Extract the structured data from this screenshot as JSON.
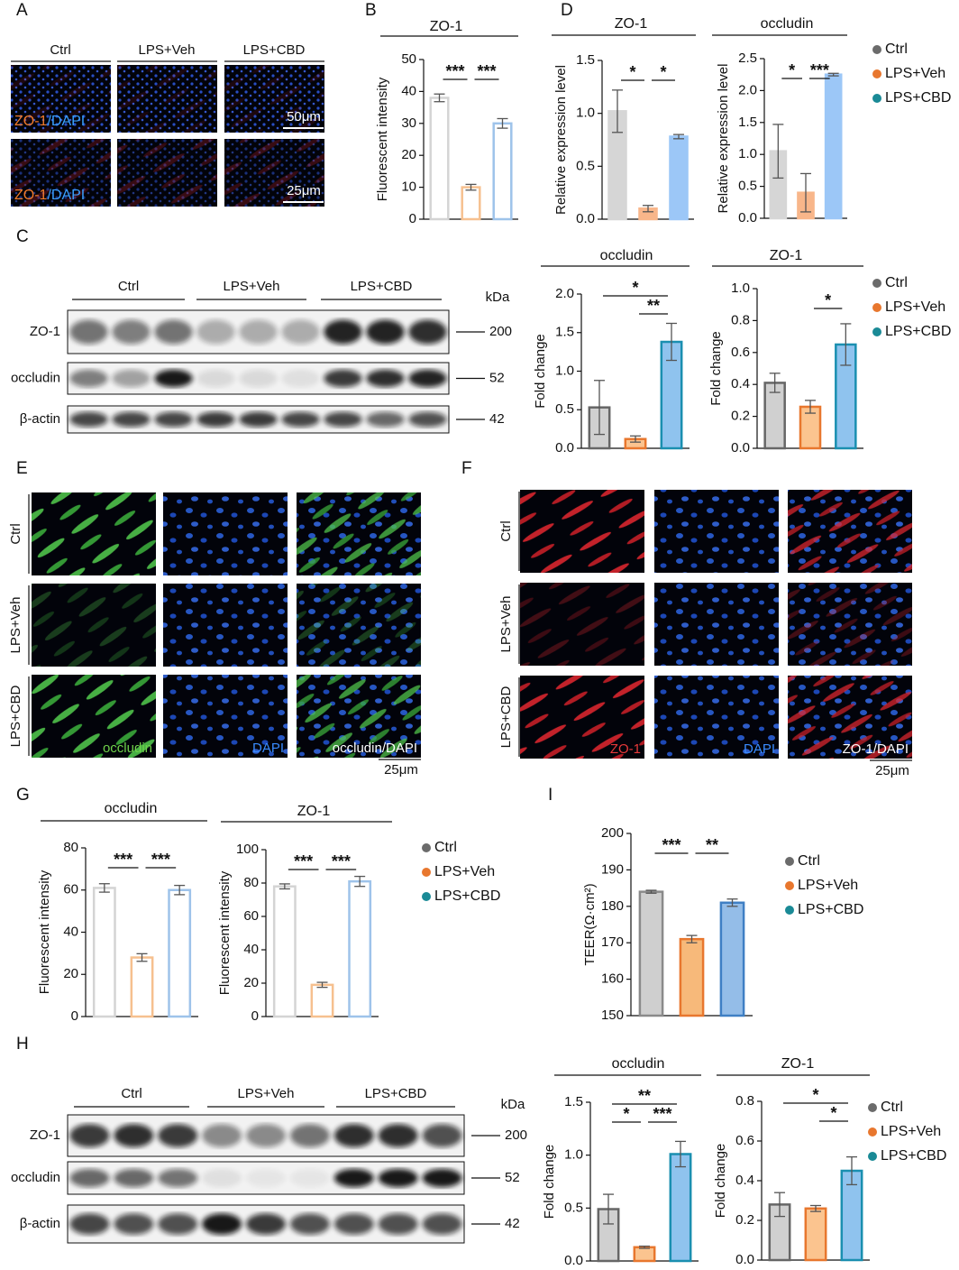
{
  "panel_labels": [
    "A",
    "B",
    "C",
    "D",
    "E",
    "F",
    "G",
    "H",
    "I"
  ],
  "panel_a": {
    "conditions": [
      "Ctrl",
      "LPS+Veh",
      "LPS+CBD"
    ],
    "rows": [
      {
        "marker": "ZO-1",
        "counter": "/DAPI",
        "scale": "50μm"
      },
      {
        "marker": "ZO-1",
        "counter": "/DAPI",
        "scale": "25μm"
      }
    ]
  },
  "panel_c_blot": {
    "conditions": [
      "Ctrl",
      "LPS+Veh",
      "LPS+CBD"
    ],
    "unit": "kDa",
    "bands": [
      {
        "name": "ZO-1",
        "kda": 200
      },
      {
        "name": "occludin",
        "kda": 52
      },
      {
        "name": "β-actin",
        "kda": 42
      }
    ]
  },
  "panel_e": {
    "rows": [
      "Ctrl",
      "LPS+Veh",
      "LPS+CBD"
    ],
    "channels": [
      "occludin",
      "DAPI",
      "occludin/DAPI"
    ],
    "scale": "25μm"
  },
  "panel_f": {
    "rows": [
      "Ctrl",
      "LPS+Veh",
      "LPS+CBD"
    ],
    "channels": [
      "ZO-1",
      "DAPI",
      "ZO-1/DAPI"
    ],
    "scale": "25μm"
  },
  "panel_h_blot": {
    "conditions": [
      "Ctrl",
      "LPS+Veh",
      "LPS+CBD"
    ],
    "unit": "kDa",
    "bands": [
      {
        "name": "ZO-1",
        "kda": 200
      },
      {
        "name": "occludin",
        "kda": 52
      },
      {
        "name": "β-actin",
        "kda": 42
      }
    ]
  },
  "chart_data": [
    {
      "type": "bar",
      "title": "ZO-1",
      "ylabel": "Fluorescent intensity",
      "ylim": [
        0,
        50
      ],
      "yticks": [
        0,
        10,
        20,
        30,
        40,
        50
      ],
      "values": [
        38,
        10,
        30
      ],
      "errors": [
        1.2,
        0.9,
        1.5
      ],
      "colors": [
        "#ffffff",
        "#ffffff",
        "#ffffff"
      ],
      "edge_colors": [
        "#d4d4d4",
        "#f6c08f",
        "#9ec3ea"
      ],
      "significance": [
        {
          "label": "***",
          "groups": [
            0,
            1
          ]
        },
        {
          "label": "***",
          "groups": [
            1,
            2
          ]
        }
      ]
    },
    {
      "type": "bar",
      "title": "ZO-1",
      "ylabel": "Relative expression level",
      "ylim": [
        0,
        1.5
      ],
      "yticks": [
        {
          "value": 0,
          "label": "0.0"
        },
        {
          "value": 0.5,
          "label": "0.5"
        },
        {
          "value": 1,
          "label": "1.0"
        },
        {
          "value": 1.5,
          "label": "1.5"
        }
      ],
      "values": [
        1.02,
        0.1,
        0.78
      ],
      "errors": [
        0.2,
        0.03,
        0.02
      ],
      "colors": [
        "#d6d6d6",
        "#f8b68a",
        "#9cc7f7"
      ],
      "edge_colors": [
        "#d6d6d6",
        "#f8b68a",
        "#9cc7f7"
      ],
      "significance": [
        {
          "label": "*",
          "groups": [
            0,
            1
          ]
        },
        {
          "label": "*",
          "groups": [
            1,
            2
          ]
        }
      ]
    },
    {
      "type": "bar",
      "title": "occludin",
      "ylabel": "Relative expression level",
      "ylim": [
        0,
        2.5
      ],
      "yticks": [
        {
          "value": 0,
          "label": "0.0"
        },
        {
          "value": 0.5,
          "label": "0.5"
        },
        {
          "value": 1,
          "label": "1.0"
        },
        {
          "value": 1.5,
          "label": "1.5"
        },
        {
          "value": 2,
          "label": "2.0"
        },
        {
          "value": 2.5,
          "label": "2.5"
        }
      ],
      "values": [
        1.05,
        0.4,
        2.25
      ],
      "errors": [
        0.42,
        0.3,
        0.02
      ],
      "colors": [
        "#d6d6d6",
        "#f8b68a",
        "#9cc7f7"
      ],
      "edge_colors": [
        "#d6d6d6",
        "#f8b68a",
        "#9cc7f7"
      ],
      "significance": [
        {
          "label": "*",
          "groups": [
            0,
            1
          ]
        },
        {
          "label": "***",
          "groups": [
            1,
            2
          ]
        }
      ],
      "categories": [
        "Ctrl",
        "LPS+Veh",
        "LPS+CBD"
      ],
      "legend_colors": [
        "#6b6b6b",
        "#e8772e",
        "#1a8a96"
      ]
    },
    {
      "type": "bar",
      "title": "occludin",
      "ylabel": "Fold change",
      "ylim": [
        0,
        2
      ],
      "yticks": [
        {
          "value": 0,
          "label": "0.0"
        },
        {
          "value": 0.5,
          "label": "0.5"
        },
        {
          "value": 1,
          "label": "1.0"
        },
        {
          "value": 1.5,
          "label": "1.5"
        },
        {
          "value": 2,
          "label": "2.0"
        }
      ],
      "values": [
        0.53,
        0.12,
        1.38
      ],
      "errors": [
        0.35,
        0.04,
        0.24
      ],
      "colors": [
        "#d0d0d0",
        "#fbc48f",
        "#8fc3ee"
      ],
      "edge_colors": [
        "#666666",
        "#e8772e",
        "#1a8fb0"
      ],
      "significance": [
        {
          "label": "**",
          "groups": [
            1,
            2
          ]
        },
        {
          "label": "*",
          "groups": [
            0,
            2
          ]
        }
      ]
    },
    {
      "type": "bar",
      "title": "ZO-1",
      "ylabel": "Fold change",
      "ylim": [
        0,
        1
      ],
      "yticks": [
        {
          "value": 0,
          "label": "0.0"
        },
        {
          "value": 0.2,
          "label": "0.2"
        },
        {
          "value": 0.4,
          "label": "0.4"
        },
        {
          "value": 0.6,
          "label": "0.6"
        },
        {
          "value": 0.8,
          "label": "0.8"
        },
        {
          "value": 1,
          "label": "1.0"
        }
      ],
      "values": [
        0.41,
        0.26,
        0.65
      ],
      "errors": [
        0.06,
        0.04,
        0.13
      ],
      "colors": [
        "#d0d0d0",
        "#fbc48f",
        "#8fc3ee"
      ],
      "edge_colors": [
        "#666666",
        "#e8772e",
        "#1a8fb0"
      ],
      "significance": [
        {
          "label": "*",
          "groups": [
            1,
            2
          ]
        }
      ],
      "categories": [
        "Ctrl",
        "LPS+Veh",
        "LPS+CBD"
      ],
      "legend_colors": [
        "#6b6b6b",
        "#e8772e",
        "#1a8a96"
      ]
    },
    {
      "type": "bar",
      "title": "occludin",
      "ylabel": "Fluorescent intensity",
      "ylim": [
        0,
        80
      ],
      "yticks": [
        0,
        20,
        40,
        60,
        80
      ],
      "values": [
        61,
        28,
        60
      ],
      "errors": [
        2,
        1.8,
        2.2
      ],
      "colors": [
        "#ffffff",
        "#ffffff",
        "#ffffff"
      ],
      "edge_colors": [
        "#d4d4d4",
        "#f6c08f",
        "#9ec3ea"
      ],
      "significance": [
        {
          "label": "***",
          "groups": [
            0,
            1
          ]
        },
        {
          "label": "***",
          "groups": [
            1,
            2
          ]
        }
      ]
    },
    {
      "type": "bar",
      "title": "ZO-1",
      "ylabel": "Fluorescent intensity",
      "ylim": [
        0,
        100
      ],
      "yticks": [
        0,
        20,
        40,
        60,
        80,
        100
      ],
      "values": [
        78,
        19,
        81
      ],
      "errors": [
        1.5,
        1.5,
        3
      ],
      "colors": [
        "#ffffff",
        "#ffffff",
        "#ffffff"
      ],
      "edge_colors": [
        "#d4d4d4",
        "#f6c08f",
        "#9ec3ea"
      ],
      "significance": [
        {
          "label": "***",
          "groups": [
            0,
            1
          ]
        },
        {
          "label": "***",
          "groups": [
            1,
            2
          ]
        }
      ],
      "categories": [
        "Ctrl",
        "LPS+Veh",
        "LPS+CBD"
      ],
      "legend_colors": [
        "#6b6b6b",
        "#e8772e",
        "#1a8a96"
      ]
    },
    {
      "type": "bar",
      "ylabel": "TEER(Ω·cm²)",
      "ylim": [
        150,
        200
      ],
      "yticks": [
        150,
        160,
        170,
        180,
        190,
        200
      ],
      "values": [
        184,
        171,
        181
      ],
      "errors": [
        0.4,
        1,
        1
      ],
      "colors": [
        "#cfcfcf",
        "#f7b97a",
        "#94bde8"
      ],
      "edge_colors": [
        "#8a8a8a",
        "#e8772e",
        "#3f7fc4"
      ],
      "significance": [
        {
          "label": "***",
          "groups": [
            0,
            1
          ]
        },
        {
          "label": "**",
          "groups": [
            1,
            2
          ]
        }
      ],
      "categories": [
        "Ctrl",
        "LPS+Veh",
        "LPS+CBD"
      ],
      "legend_colors": [
        "#6b6b6b",
        "#e8772e",
        "#1a8a96"
      ]
    },
    {
      "type": "bar",
      "title": "occludin",
      "ylabel": "Fold change",
      "ylim": [
        0,
        1.5
      ],
      "yticks": [
        {
          "value": 0,
          "label": "0.0"
        },
        {
          "value": 0.5,
          "label": "0.5"
        },
        {
          "value": 1,
          "label": "1.0"
        },
        {
          "value": 1.5,
          "label": "1.5"
        }
      ],
      "values": [
        0.49,
        0.13,
        1.01
      ],
      "errors": [
        0.14,
        0.01,
        0.12
      ],
      "colors": [
        "#d0d0d0",
        "#fbc48f",
        "#8fc3ee"
      ],
      "edge_colors": [
        "#666666",
        "#e8772e",
        "#1a8fb0"
      ],
      "significance": [
        {
          "label": "*",
          "groups": [
            0,
            1
          ]
        },
        {
          "label": "***",
          "groups": [
            1,
            2
          ]
        },
        {
          "label": "**",
          "groups": [
            0,
            2
          ]
        }
      ]
    },
    {
      "type": "bar",
      "title": "ZO-1",
      "ylabel": "Fold change",
      "ylim": [
        0,
        0.8
      ],
      "yticks": [
        {
          "value": 0,
          "label": "0.0"
        },
        {
          "value": 0.2,
          "label": "0.2"
        },
        {
          "value": 0.4,
          "label": "0.4"
        },
        {
          "value": 0.6,
          "label": "0.6"
        },
        {
          "value": 0.8,
          "label": "0.8"
        }
      ],
      "values": [
        0.28,
        0.26,
        0.45
      ],
      "errors": [
        0.06,
        0.015,
        0.07
      ],
      "colors": [
        "#d0d0d0",
        "#fbc48f",
        "#8fc3ee"
      ],
      "edge_colors": [
        "#666666",
        "#e8772e",
        "#1a8fb0"
      ],
      "significance": [
        {
          "label": "*",
          "groups": [
            1,
            2
          ]
        },
        {
          "label": "*",
          "groups": [
            0,
            2
          ]
        }
      ],
      "categories": [
        "Ctrl",
        "LPS+Veh",
        "LPS+CBD"
      ],
      "legend_colors": [
        "#6b6b6b",
        "#e8772e",
        "#1a8a96"
      ]
    }
  ]
}
